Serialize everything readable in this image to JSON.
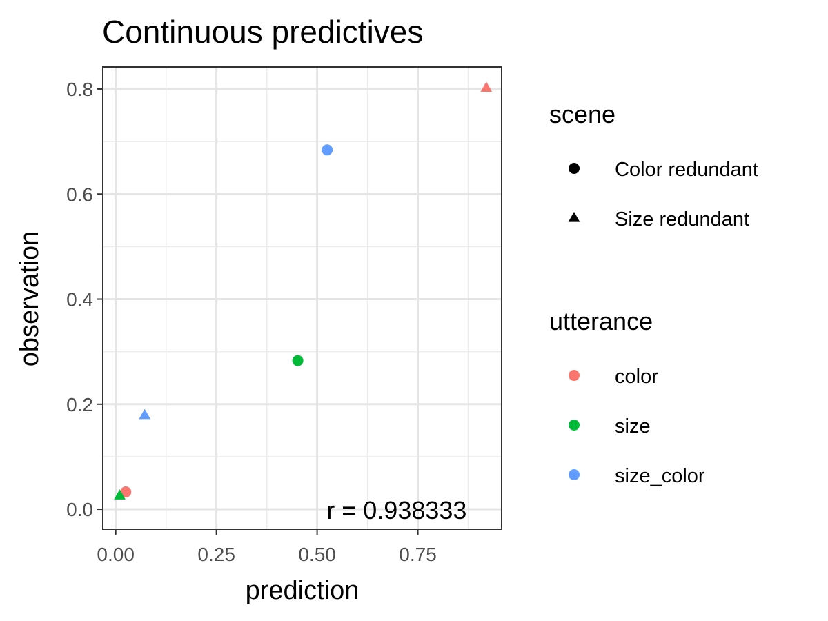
{
  "chart_data": {
    "type": "scatter",
    "title": "Continuous predictives",
    "xlabel": "prediction",
    "ylabel": "observation",
    "xlim": [
      -0.032,
      0.958
    ],
    "ylim": [
      -0.038,
      0.842
    ],
    "x_ticks": [
      0.0,
      0.25,
      0.5,
      0.75
    ],
    "x_tick_labels": [
      "0.00",
      "0.25",
      "0.50",
      "0.75"
    ],
    "y_ticks": [
      0.0,
      0.2,
      0.4,
      0.6,
      0.8
    ],
    "y_tick_labels": [
      "0.0",
      "0.2",
      "0.4",
      "0.6",
      "0.8"
    ],
    "grid": true,
    "points": [
      {
        "x": 0.92,
        "y": 0.802,
        "scene": "Size redundant",
        "utterance": "color"
      },
      {
        "x": 0.525,
        "y": 0.684,
        "scene": "Color redundant",
        "utterance": "size_color"
      },
      {
        "x": 0.452,
        "y": 0.283,
        "scene": "Color redundant",
        "utterance": "size"
      },
      {
        "x": 0.072,
        "y": 0.179,
        "scene": "Size redundant",
        "utterance": "size_color"
      },
      {
        "x": 0.025,
        "y": 0.033,
        "scene": "Color redundant",
        "utterance": "color"
      },
      {
        "x": 0.01,
        "y": 0.026,
        "scene": "Size redundant",
        "utterance": "size"
      }
    ],
    "annotation": {
      "text": "r = 0.938333",
      "x": 0.52,
      "y": 0.0
    },
    "legends": [
      {
        "title": "scene",
        "placement": "right",
        "entries": [
          {
            "label": "Color redundant",
            "shape": "circle",
            "color": "#000000"
          },
          {
            "label": "Size redundant",
            "shape": "triangle",
            "color": "#000000"
          }
        ]
      },
      {
        "title": "utterance",
        "placement": "right",
        "entries": [
          {
            "label": "color",
            "shape": "circle",
            "color": "#F8766D"
          },
          {
            "label": "size",
            "shape": "circle",
            "color": "#00BA38"
          },
          {
            "label": "size_color",
            "shape": "circle",
            "color": "#619CFF"
          }
        ]
      }
    ]
  }
}
